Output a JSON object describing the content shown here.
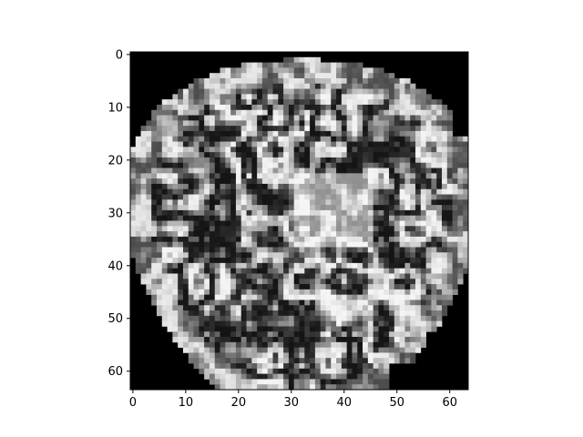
{
  "image": {
    "kind": "grayscale-scan-slice",
    "subject": "mri-brain-axial-slice",
    "colormap": "gray",
    "matrix_rows": 64,
    "matrix_cols": 64,
    "background_color": "#000000"
  },
  "axes": {
    "x": {
      "range": [
        -0.5,
        63.5
      ],
      "ticks": [
        0,
        10,
        20,
        30,
        40,
        50,
        60
      ],
      "tick_labels": [
        "0",
        "10",
        "20",
        "30",
        "40",
        "50",
        "60"
      ]
    },
    "y": {
      "range": [
        -0.5,
        63.5
      ],
      "inverted": true,
      "ticks": [
        0,
        10,
        20,
        30,
        40,
        50,
        60
      ],
      "tick_labels": [
        "0",
        "10",
        "20",
        "30",
        "40",
        "50",
        "60"
      ]
    }
  }
}
